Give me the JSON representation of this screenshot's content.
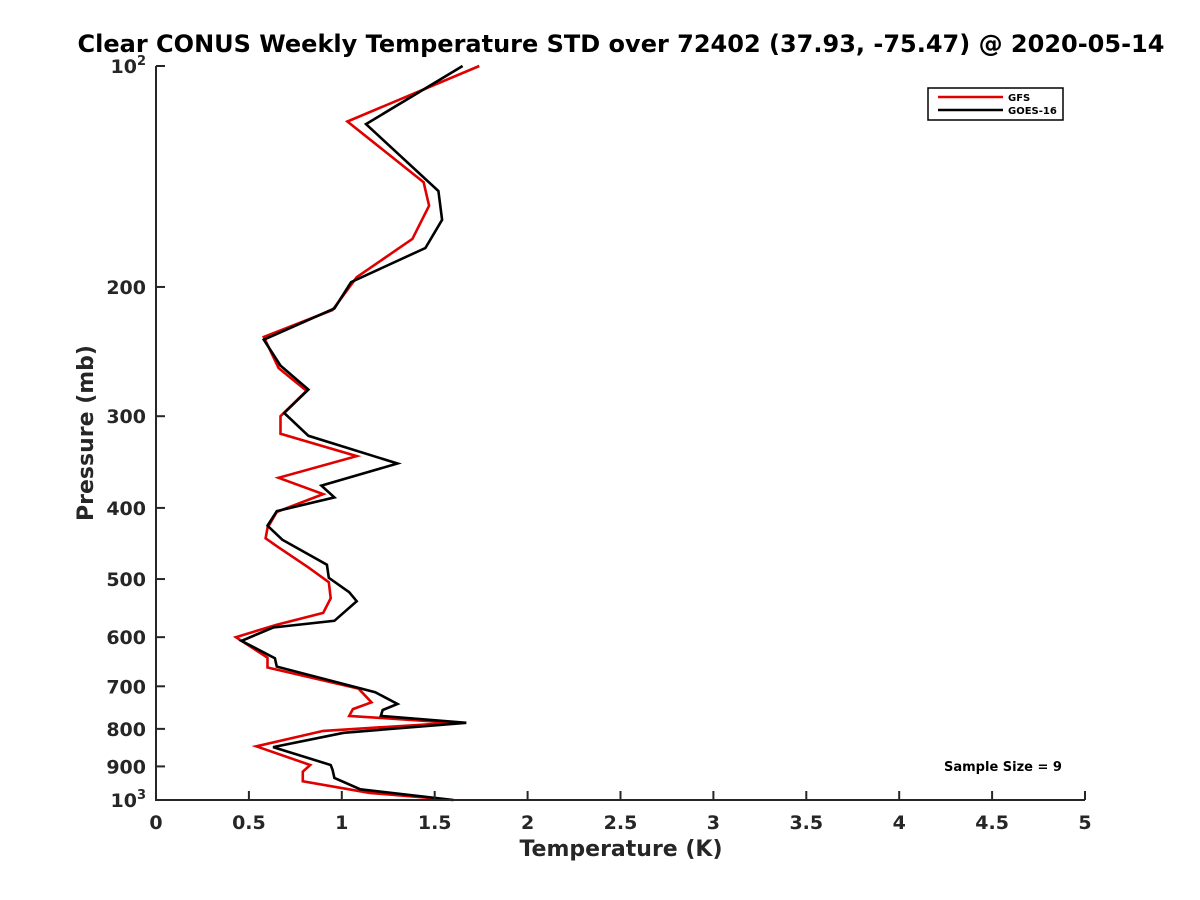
{
  "chart_data": {
    "type": "line",
    "title": "Clear CONUS Weekly Temperature STD over 72402 (37.93, -75.47) @ 2020-05-14",
    "xlabel": "Temperature (K)",
    "ylabel": "Pressure (mb)",
    "xlim": [
      0,
      5
    ],
    "ylim": [
      100,
      1000
    ],
    "yscale": "log",
    "y_reversed": true,
    "x_ticks": [
      {
        "value": 0,
        "label": "0"
      },
      {
        "value": 0.5,
        "label": "0.5"
      },
      {
        "value": 1,
        "label": "1"
      },
      {
        "value": 1.5,
        "label": "1.5"
      },
      {
        "value": 2,
        "label": "2"
      },
      {
        "value": 2.5,
        "label": "2.5"
      },
      {
        "value": 3,
        "label": "3"
      },
      {
        "value": 3.5,
        "label": "3.5"
      },
      {
        "value": 4,
        "label": "4"
      },
      {
        "value": 4.5,
        "label": "4.5"
      },
      {
        "value": 5,
        "label": "5"
      }
    ],
    "y_ticks": [
      {
        "value": 100,
        "base": "10",
        "exp": "2"
      },
      {
        "value": 200,
        "label": "200"
      },
      {
        "value": 300,
        "label": "300"
      },
      {
        "value": 400,
        "label": "400"
      },
      {
        "value": 500,
        "label": "500"
      },
      {
        "value": 600,
        "label": "600"
      },
      {
        "value": 700,
        "label": "700"
      },
      {
        "value": 800,
        "label": "800"
      },
      {
        "value": 900,
        "label": "900"
      },
      {
        "value": 1000,
        "base": "10",
        "exp": "3"
      }
    ],
    "legend_position": "top-right",
    "annotation": "Sample Size = 9",
    "series": [
      {
        "name": "GFS",
        "color": "#e00000",
        "points": [
          [
            1.74,
            100
          ],
          [
            1.03,
            119
          ],
          [
            1.44,
            144
          ],
          [
            1.47,
            155
          ],
          [
            1.38,
            172
          ],
          [
            1.08,
            194
          ],
          [
            0.95,
            215
          ],
          [
            0.58,
            234
          ],
          [
            0.66,
            258
          ],
          [
            0.81,
            277
          ],
          [
            0.67,
            300
          ],
          [
            0.67,
            317
          ],
          [
            1.08,
            340
          ],
          [
            0.66,
            364
          ],
          [
            0.9,
            383
          ],
          [
            0.65,
            405
          ],
          [
            0.6,
            426
          ],
          [
            0.59,
            440
          ],
          [
            0.65,
            451
          ],
          [
            0.82,
            482
          ],
          [
            0.93,
            505
          ],
          [
            0.94,
            531
          ],
          [
            0.9,
            556
          ],
          [
            0.65,
            577
          ],
          [
            0.43,
            600
          ],
          [
            0.6,
            640
          ],
          [
            0.6,
            660
          ],
          [
            1.09,
            705
          ],
          [
            1.16,
            736
          ],
          [
            1.06,
            752
          ],
          [
            1.04,
            768
          ],
          [
            1.6,
            785
          ],
          [
            0.9,
            805
          ],
          [
            0.54,
            845
          ],
          [
            0.83,
            896
          ],
          [
            0.79,
            915
          ],
          [
            0.79,
            943
          ],
          [
            1.15,
            978
          ],
          [
            1.6,
            1000
          ]
        ]
      },
      {
        "name": "GOES-16",
        "color": "#000000",
        "points": [
          [
            1.65,
            100
          ],
          [
            1.13,
            120
          ],
          [
            1.52,
            148
          ],
          [
            1.54,
            162
          ],
          [
            1.45,
            177
          ],
          [
            1.05,
            197
          ],
          [
            0.96,
            214
          ],
          [
            0.58,
            236
          ],
          [
            0.67,
            256
          ],
          [
            0.82,
            276
          ],
          [
            0.69,
            297
          ],
          [
            0.82,
            319
          ],
          [
            1.3,
            348
          ],
          [
            0.89,
            373
          ],
          [
            0.96,
            387
          ],
          [
            0.65,
            404
          ],
          [
            0.6,
            423
          ],
          [
            0.68,
            442
          ],
          [
            0.92,
            478
          ],
          [
            0.93,
            498
          ],
          [
            1.04,
            521
          ],
          [
            1.08,
            536
          ],
          [
            0.96,
            570
          ],
          [
            0.63,
            582
          ],
          [
            0.46,
            607
          ],
          [
            0.64,
            641
          ],
          [
            0.65,
            658
          ],
          [
            1.18,
            713
          ],
          [
            1.3,
            740
          ],
          [
            1.22,
            754
          ],
          [
            1.21,
            768
          ],
          [
            1.67,
            785
          ],
          [
            1.01,
            810
          ],
          [
            0.63,
            847
          ],
          [
            0.94,
            896
          ],
          [
            0.95,
            909
          ],
          [
            0.96,
            933
          ],
          [
            1.1,
            967
          ],
          [
            1.6,
            1000
          ]
        ]
      }
    ]
  }
}
